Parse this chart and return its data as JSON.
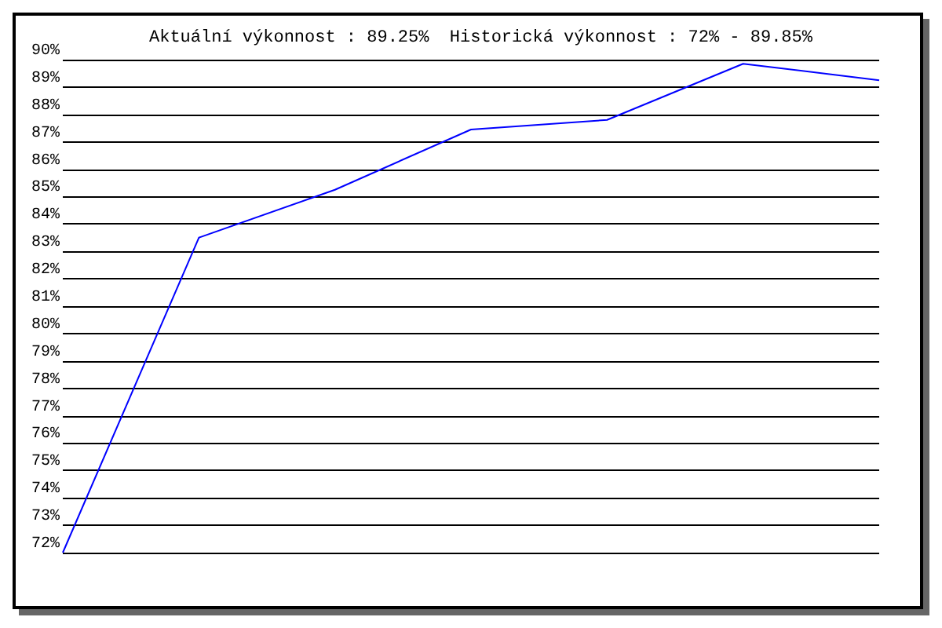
{
  "chart_data": {
    "type": "line",
    "title": "Aktuální výkonnost : 89.25%  Historická výkonnost : 72% - 89.85%",
    "categories": [
      null,
      null,
      null,
      null,
      null,
      null,
      null
    ],
    "series": [
      {
        "color": "#0000ff",
        "values": [
          72,
          83.5,
          85.25,
          87.45,
          87.8,
          89.85,
          89.25
        ]
      }
    ],
    "ylim": [
      72,
      90
    ],
    "yticks": [
      {
        "value": 72,
        "label": "72%"
      },
      {
        "value": 73,
        "label": "73%"
      },
      {
        "value": 74,
        "label": "74%"
      },
      {
        "value": 75,
        "label": "75%"
      },
      {
        "value": 76,
        "label": "76%"
      },
      {
        "value": 77,
        "label": "77%"
      },
      {
        "value": 78,
        "label": "78%"
      },
      {
        "value": 79,
        "label": "79%"
      },
      {
        "value": 80,
        "label": "80%"
      },
      {
        "value": 81,
        "label": "81%"
      },
      {
        "value": 82,
        "label": "82%"
      },
      {
        "value": 83,
        "label": "83%"
      },
      {
        "value": 84,
        "label": "84%"
      },
      {
        "value": 85,
        "label": "85%"
      },
      {
        "value": 86,
        "label": "86%"
      },
      {
        "value": 87,
        "label": "87%"
      },
      {
        "value": 88,
        "label": "88%"
      },
      {
        "value": 89,
        "label": "89%"
      },
      {
        "value": 90,
        "label": "90%"
      }
    ],
    "grid": "y",
    "marker": "none",
    "line_style": "solid"
  }
}
